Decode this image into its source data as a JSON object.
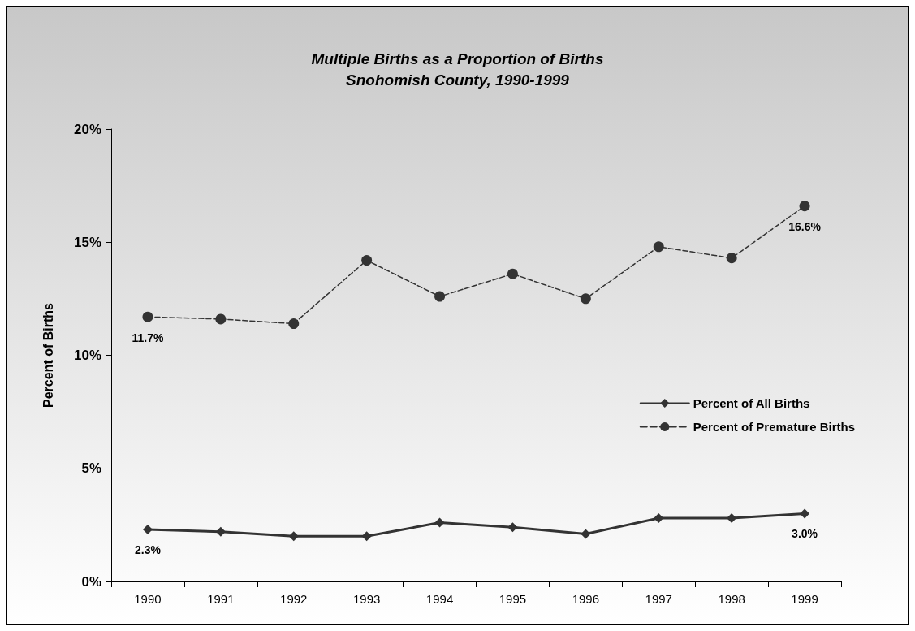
{
  "chart_data": {
    "type": "line",
    "title": "Multiple Births as a Proportion of Births\nSnohomish County, 1990-1999",
    "ylabel": "Percent of Births",
    "categories": [
      "1990",
      "1991",
      "1992",
      "1993",
      "1994",
      "1995",
      "1996",
      "1997",
      "1998",
      "1999"
    ],
    "series": [
      {
        "name": "Percent of All Births",
        "color": "#333333",
        "marker": "diamond",
        "line_style": "solid",
        "values": [
          2.3,
          2.2,
          2.0,
          2.0,
          2.6,
          2.4,
          2.1,
          2.8,
          2.8,
          3.0
        ],
        "value_labels": [
          "2.3%",
          null,
          null,
          null,
          null,
          null,
          null,
          null,
          null,
          "3.0%"
        ]
      },
      {
        "name": "Percent of Premature Births",
        "color": "#333333",
        "marker": "circle",
        "line_style": "dashed",
        "values": [
          11.7,
          11.6,
          11.4,
          14.2,
          12.6,
          13.6,
          12.5,
          14.8,
          14.3,
          16.6
        ],
        "value_labels": [
          "11.7%",
          null,
          null,
          null,
          null,
          null,
          null,
          null,
          null,
          "16.6%"
        ]
      }
    ],
    "ylim": [
      0,
      20
    ],
    "yticks": [
      {
        "value": 0,
        "label": "0%"
      },
      {
        "value": 5,
        "label": "5%"
      },
      {
        "value": 10,
        "label": "10%"
      },
      {
        "value": 15,
        "label": "15%"
      },
      {
        "value": 20,
        "label": "20%"
      }
    ],
    "grid": false,
    "legend": "right"
  }
}
